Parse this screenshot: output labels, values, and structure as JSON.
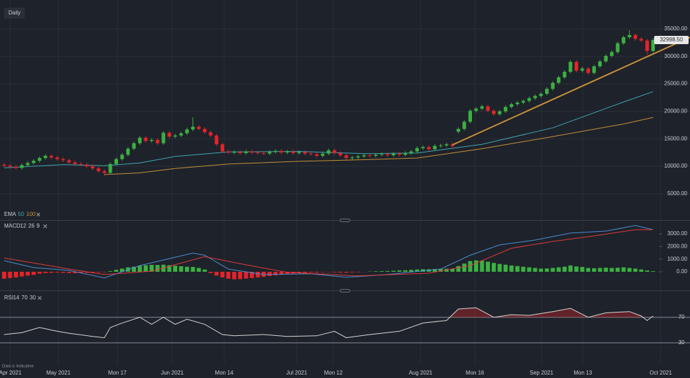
{
  "chart_data": {
    "type": "candlestick",
    "interval": "Daily",
    "note": "Data is Indicative",
    "xlim": [
      -0.7,
      116.26
    ],
    "xticks": [
      {
        "value": 1.05,
        "label": "Apr 2021"
      },
      {
        "value": 9.2,
        "label": "May 2021"
      },
      {
        "value": 19.2,
        "label": "Mon 17"
      },
      {
        "value": 28.5,
        "label": "Jun 2021"
      },
      {
        "value": 37.3,
        "label": "Mon 14"
      },
      {
        "value": 49.6,
        "label": "Jul 2021"
      },
      {
        "value": 55.8,
        "label": "Mon 12"
      },
      {
        "value": 70.6,
        "label": "Aug 2021"
      },
      {
        "value": 79.8,
        "label": "Mon 16"
      },
      {
        "value": 91.1,
        "label": "Sep 2021"
      },
      {
        "value": 98.1,
        "label": "Mon 13"
      },
      {
        "value": 111.3,
        "label": "Oct 2021"
      }
    ],
    "ylim": [
      330,
      40280
    ],
    "yticks": [
      {
        "value": 35000,
        "label": "35000.00"
      },
      {
        "value": 30000,
        "label": "30000.00"
      },
      {
        "value": 25000,
        "label": "25000.00"
      },
      {
        "value": 20000,
        "label": "20000.00"
      },
      {
        "value": 15000,
        "label": "15000.00"
      },
      {
        "value": 10000,
        "label": "10000.00"
      },
      {
        "value": 5000,
        "label": "5000.00"
      }
    ],
    "grid": true,
    "up_color": "#3cb043",
    "down_color": "#e3242b",
    "open": [
      10300,
      10100,
      9900,
      9700,
      10200,
      10600,
      11000,
      11500,
      11900,
      11600,
      11300,
      11100,
      10700,
      10400,
      10300,
      10000,
      9600,
      9100,
      8800,
      10400,
      11300,
      12100,
      13200,
      14200,
      15200,
      14600,
      14800,
      14200,
      16100,
      15400,
      15600,
      16000,
      16700,
      17200,
      16800,
      16200,
      15600,
      14000,
      12700,
      12500,
      12600,
      12400,
      12700,
      12500,
      12400,
      12300,
      12600,
      12800,
      12500,
      12700,
      12400,
      12600,
      12300,
      12200,
      11900,
      12300,
      12900,
      12400,
      12000,
      11500,
      11600,
      11800,
      12000,
      11900,
      12100,
      12200,
      12000,
      12300,
      12100,
      12400,
      12700,
      13300,
      13500,
      13100,
      13700,
      13800,
      14000,
      16300,
      16800,
      18100,
      20100,
      20500,
      20900,
      20100,
      19500,
      20000,
      20800,
      21300,
      21600,
      21900,
      22400,
      22800,
      23200,
      24100,
      25200,
      26200,
      27200,
      29000,
      27400,
      27800,
      27000,
      28200,
      29100,
      30100,
      30800,
      32400,
      33500,
      33900,
      33200,
      32900,
      31000
    ],
    "high": [
      10600,
      10400,
      10200,
      10500,
      10900,
      11300,
      11800,
      12200,
      12200,
      11900,
      11600,
      11400,
      11000,
      10700,
      10600,
      10300,
      9900,
      9400,
      10700,
      11600,
      12400,
      13500,
      14500,
      15500,
      15500,
      15100,
      15100,
      16400,
      16400,
      15900,
      16300,
      17000,
      18900,
      17500,
      17100,
      16500,
      15900,
      14300,
      13000,
      12900,
      12900,
      13000,
      13000,
      12800,
      12700,
      12900,
      13100,
      13100,
      13000,
      13000,
      12900,
      12900,
      12600,
      12500,
      12600,
      13200,
      13200,
      12700,
      12300,
      11900,
      12100,
      12300,
      12300,
      12400,
      12500,
      12500,
      12600,
      12600,
      12700,
      13000,
      13600,
      13800,
      13800,
      14000,
      14100,
      14300,
      14300,
      17100,
      18400,
      20400,
      20800,
      21200,
      21200,
      20400,
      20300,
      21100,
      21600,
      21900,
      22200,
      22700,
      23100,
      23500,
      24400,
      25500,
      26500,
      27500,
      29300,
      29300,
      28100,
      28100,
      28500,
      29400,
      30400,
      31100,
      32700,
      33800,
      34800,
      34200,
      33500,
      33200,
      33300
    ],
    "low": [
      9800,
      9600,
      9400,
      9400,
      9900,
      10300,
      10700,
      11200,
      11300,
      11000,
      10800,
      10400,
      10100,
      10000,
      9700,
      9300,
      8800,
      8300,
      8500,
      10100,
      11000,
      11800,
      12900,
      13900,
      14300,
      14300,
      13900,
      13900,
      15100,
      15100,
      15300,
      15700,
      16400,
      16500,
      15900,
      15300,
      13700,
      12400,
      12200,
      12200,
      12100,
      12100,
      12200,
      12100,
      12000,
      12000,
      12300,
      12200,
      12200,
      12100,
      12100,
      12000,
      11900,
      11600,
      11600,
      12000,
      12100,
      11700,
      11200,
      11200,
      11300,
      11500,
      11600,
      11600,
      11800,
      11700,
      11700,
      11800,
      11800,
      12100,
      12400,
      13000,
      12800,
      12800,
      13400,
      13500,
      13400,
      16000,
      16500,
      17800,
      19800,
      20200,
      19800,
      19200,
      19200,
      19700,
      20500,
      21000,
      21300,
      21600,
      22100,
      22500,
      22900,
      23800,
      24900,
      25900,
      26900,
      27100,
      27100,
      26700,
      26700,
      27900,
      28800,
      29800,
      30500,
      32100,
      33200,
      32900,
      32600,
      30300,
      30700
    ],
    "close": [
      10100,
      9900,
      9700,
      10200,
      10600,
      11000,
      11500,
      11900,
      11600,
      11300,
      11100,
      10700,
      10400,
      10300,
      10000,
      9600,
      9100,
      8800,
      10400,
      11300,
      12100,
      13200,
      14200,
      15200,
      14600,
      14800,
      14200,
      16100,
      15400,
      15600,
      16000,
      16700,
      17200,
      16800,
      16200,
      15600,
      14000,
      12700,
      12500,
      12600,
      12400,
      12700,
      12500,
      12400,
      12300,
      12600,
      12800,
      12500,
      12700,
      12400,
      12600,
      12300,
      12200,
      11900,
      12300,
      12900,
      12400,
      12000,
      11500,
      11600,
      11800,
      12000,
      11900,
      12100,
      12200,
      12000,
      12300,
      12100,
      12400,
      12700,
      13300,
      13500,
      13100,
      13700,
      13800,
      14000,
      13700,
      16800,
      18100,
      20100,
      20500,
      20900,
      20100,
      19500,
      20000,
      20800,
      21300,
      21600,
      21900,
      22400,
      22800,
      23200,
      24100,
      25200,
      26200,
      27200,
      29000,
      27400,
      27800,
      27000,
      28200,
      29100,
      30100,
      30800,
      32400,
      33500,
      33900,
      33200,
      32900,
      31000,
      32998.5
    ],
    "last_label": "32998.50",
    "trendline": {
      "color": "#c8913a",
      "x": [
        76,
        116.26
      ],
      "values": [
        13900,
        33500
      ]
    },
    "ema": {
      "label": "EMA",
      "series": [
        {
          "name": "50",
          "color": "#3fa7b5",
          "x": [
            0,
            10,
            17,
            23,
            29,
            38,
            50,
            61,
            70,
            81,
            93,
            105,
            110
          ],
          "values": [
            9700,
            10300,
            10100,
            10600,
            11800,
            12600,
            12700,
            12300,
            12400,
            14000,
            17000,
            21700,
            23600
          ]
        },
        {
          "name": "100",
          "color": "#c8913a",
          "x": [
            17,
            23,
            29,
            38,
            50,
            61,
            70,
            81,
            93,
            105,
            110
          ],
          "values": [
            8500,
            8800,
            9600,
            10400,
            10900,
            11200,
            11500,
            13200,
            15400,
            17700,
            18900
          ]
        }
      ]
    },
    "macd": {
      "label": "MACD",
      "params": [
        12,
        26,
        9
      ],
      "ylim": [
        -1420,
        3930
      ],
      "yticks": [
        {
          "value": 3000,
          "label": "3000.00"
        },
        {
          "value": 2000,
          "label": "2000.00"
        },
        {
          "value": 1000,
          "label": "1000.00"
        },
        {
          "value": 0,
          "label": "0.00"
        }
      ],
      "macd_line": {
        "color": "#4a8fd4",
        "x": [
          0,
          5,
          11,
          17,
          23,
          32,
          34,
          38,
          44,
          52,
          58,
          65,
          74,
          79,
          84,
          90,
          96,
          102,
          107,
          110
        ],
        "values": [
          880,
          330,
          110,
          -490,
          490,
          1480,
          1310,
          220,
          -220,
          -160,
          -440,
          -220,
          220,
          1310,
          2130,
          2510,
          3060,
          3220,
          3660,
          3330
        ]
      },
      "signal": {
        "color": "#e03c3c",
        "x": [
          0,
          11,
          17,
          25,
          34,
          41,
          48,
          60,
          72,
          79,
          86,
          93,
          100,
          107,
          110
        ],
        "values": [
          1090,
          220,
          -220,
          50,
          1200,
          550,
          -50,
          -330,
          -110,
          490,
          1860,
          2400,
          2840,
          3330,
          3330
        ]
      },
      "histogram": [
        -550,
        -500,
        -450,
        -380,
        -300,
        -250,
        -150,
        -100,
        -80,
        -60,
        -80,
        -100,
        -120,
        -100,
        -80,
        -60,
        -40,
        -30,
        50,
        150,
        250,
        350,
        400,
        480,
        520,
        550,
        540,
        560,
        520,
        480,
        440,
        400,
        380,
        300,
        180,
        -100,
        -300,
        -450,
        -550,
        -600,
        -580,
        -540,
        -500,
        -450,
        -400,
        -330,
        -280,
        -230,
        -180,
        -140,
        -100,
        -80,
        -60,
        -50,
        -30,
        -20,
        -40,
        -60,
        -70,
        -50,
        -30,
        -10,
        20,
        40,
        50,
        60,
        80,
        100,
        120,
        150,
        180,
        200,
        200,
        220,
        230,
        240,
        220,
        450,
        650,
        850,
        900,
        880,
        800,
        700,
        620,
        560,
        500,
        450,
        400,
        350,
        300,
        250,
        260,
        300,
        350,
        400,
        500,
        420,
        380,
        300,
        280,
        300,
        320,
        300,
        320,
        350,
        300,
        250,
        180,
        100,
        50
      ]
    },
    "rsi": {
      "label": "RSI",
      "params": [
        14,
        70,
        30
      ],
      "color": "#d8d8d8",
      "fill": "#b3262a",
      "ylim": [
        -3.5,
        107.8
      ],
      "yticks": [
        70,
        30
      ],
      "x": [
        0,
        3,
        6,
        9,
        11,
        15,
        17,
        18,
        20,
        23,
        25,
        27,
        29,
        31,
        34,
        37,
        39,
        44,
        48,
        53,
        56,
        58,
        62,
        67,
        71,
        75,
        77,
        80,
        83,
        86,
        89,
        93,
        96,
        99,
        102,
        106,
        108,
        109,
        110
      ],
      "values": [
        43,
        46,
        54,
        48,
        45,
        40,
        38,
        54,
        61,
        70,
        59,
        70,
        59,
        67,
        59,
        43,
        41,
        43,
        40,
        41,
        48,
        38,
        43,
        48,
        61,
        65,
        83,
        85,
        70,
        74,
        73,
        79,
        84,
        70,
        77,
        79,
        72,
        65,
        72
      ]
    }
  }
}
